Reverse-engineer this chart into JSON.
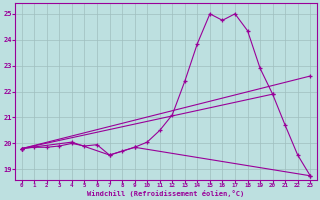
{
  "xlabel": "Windchill (Refroidissement éolien,°C)",
  "background_color": "#bde0e0",
  "grid_color": "#9fbebe",
  "line_color": "#990099",
  "xlim": [
    -0.5,
    23.5
  ],
  "ylim": [
    18.6,
    25.4
  ],
  "xticks": [
    0,
    1,
    2,
    3,
    4,
    5,
    6,
    7,
    8,
    9,
    10,
    11,
    12,
    13,
    14,
    15,
    16,
    17,
    18,
    19,
    20,
    21,
    22,
    23
  ],
  "yticks": [
    19,
    20,
    21,
    22,
    23,
    24,
    25
  ],
  "lines": [
    {
      "x": [
        0,
        1,
        2,
        3,
        4,
        5,
        6,
        7,
        8,
        9,
        10,
        11,
        12,
        13,
        14,
        15,
        16,
        17,
        18,
        19,
        20,
        21,
        22,
        23
      ],
      "y": [
        19.8,
        19.85,
        19.85,
        19.9,
        20.0,
        19.9,
        19.95,
        19.55,
        19.7,
        19.85,
        20.05,
        20.5,
        21.1,
        22.4,
        23.85,
        25.0,
        24.75,
        25.0,
        24.35,
        22.9,
        21.9,
        20.7,
        19.55,
        18.75
      ]
    },
    {
      "x": [
        0,
        4,
        7,
        9,
        23
      ],
      "y": [
        19.8,
        20.05,
        19.55,
        19.85,
        18.75
      ]
    },
    {
      "x": [
        0,
        23
      ],
      "y": [
        19.8,
        22.6
      ]
    },
    {
      "x": [
        0,
        20
      ],
      "y": [
        19.8,
        21.9
      ]
    }
  ]
}
